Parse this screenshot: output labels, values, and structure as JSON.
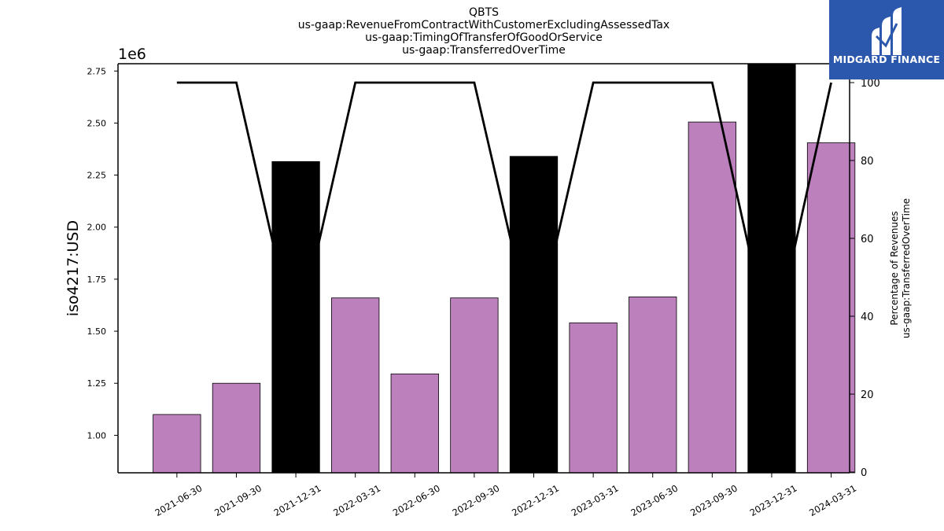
{
  "titles": [
    "QBTS",
    "us-gaap:RevenueFromContractWithCustomerExcludingAssessedTax",
    "us-gaap:TimingOfTransferOfGoodOrService",
    "us-gaap:TransferredOverTime"
  ],
  "logo": {
    "text": "MIDGARD FINANCE",
    "background": "#2b58ac"
  },
  "chart_data": {
    "type": "bar",
    "categories": [
      "2021-06-30",
      "2021-09-30",
      "2021-12-31",
      "2022-03-31",
      "2022-06-30",
      "2022-09-30",
      "2022-12-31",
      "2023-03-31",
      "2023-06-30",
      "2023-09-30",
      "2023-12-31",
      "2024-03-31"
    ],
    "series": [
      {
        "type": "bar",
        "axis": "left",
        "values": [
          1100000,
          1250000,
          2315000,
          1660000,
          1295000,
          1660000,
          2340000,
          1540000,
          1665000,
          2505000,
          2790000,
          2405000
        ],
        "colors": [
          "#bc80bd",
          "#bc80bd",
          "#000000",
          "#bc80bd",
          "#bc80bd",
          "#bc80bd",
          "#000000",
          "#bc80bd",
          "#bc80bd",
          "#bc80bd",
          "#000000",
          "#bc80bd"
        ]
      },
      {
        "type": "line",
        "axis": "right",
        "values": [
          100,
          100,
          33,
          100,
          100,
          100,
          34,
          100,
          100,
          100,
          31,
          100
        ],
        "color": "#000000"
      }
    ],
    "ylabel": "iso4217:USD",
    "y_offset_label": "1e6",
    "ylim": [
      820000,
      2785000
    ],
    "yticks": [
      1000000,
      1250000,
      1500000,
      1750000,
      2000000,
      2250000,
      2500000,
      2750000
    ],
    "ytick_labels": [
      "1.00",
      "1.25",
      "1.50",
      "1.75",
      "2.00",
      "2.25",
      "2.50",
      "2.75"
    ],
    "y2label_lines": [
      "Percentage of Revenues",
      "us-gaap:TransferredOverTime"
    ],
    "y2lim": [
      0,
      100
    ],
    "y2ticks": [
      0,
      20,
      40,
      60,
      80,
      100
    ],
    "y2tick_labels": [
      "0",
      "20",
      "40",
      "60",
      "80",
      "100"
    ],
    "grid": false
  }
}
